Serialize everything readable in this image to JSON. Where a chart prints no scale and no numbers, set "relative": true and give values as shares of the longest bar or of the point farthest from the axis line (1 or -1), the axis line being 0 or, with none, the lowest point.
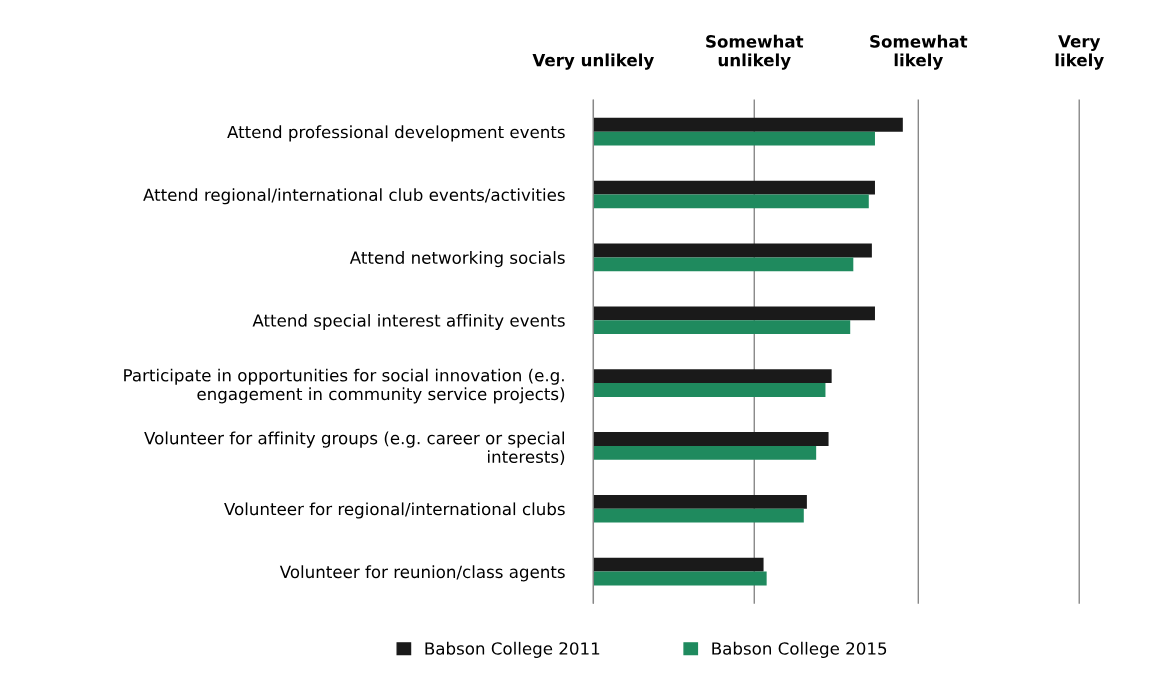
{
  "chart_data": {
    "type": "bar",
    "orientation": "horizontal",
    "relative": true,
    "categories": [
      "Attend professional development events",
      "Attend regional/international club events/activities",
      "Attend networking socials",
      "Attend special interest affinity events",
      "Participate in opportunities for social innovation (e.g.\nengagement in community service projects)",
      "Volunteer for affinity groups (e.g. career or special\ninterests)",
      "Volunteer for regional/international clubs",
      "Volunteer for reunion/class agents"
    ],
    "series": [
      {
        "name": "Babson College 2011",
        "color": "#1a1a1a",
        "values": [
          1,
          0.91,
          0.9,
          0.91,
          0.77,
          0.76,
          0.69,
          0.55
        ]
      },
      {
        "name": "Babson College 2015",
        "color": "#1f8a5e",
        "values": [
          0.91,
          0.89,
          0.84,
          0.83,
          0.75,
          0.72,
          0.68,
          0.56
        ]
      }
    ],
    "ref_lines": [
      {
        "axis": "x",
        "value": 0,
        "label": "Very unlikely",
        "color": "#888888"
      },
      {
        "axis": "x",
        "value": 0.52,
        "label": "Somewhat\nunlikely",
        "color": "#888888"
      },
      {
        "axis": "x",
        "value": 1.05,
        "label": "Somewhat\nlikely",
        "color": "#888888"
      },
      {
        "axis": "x",
        "value": 1.57,
        "label": "Very\nlikely",
        "color": "#888888"
      }
    ],
    "legend": "bottom"
  }
}
